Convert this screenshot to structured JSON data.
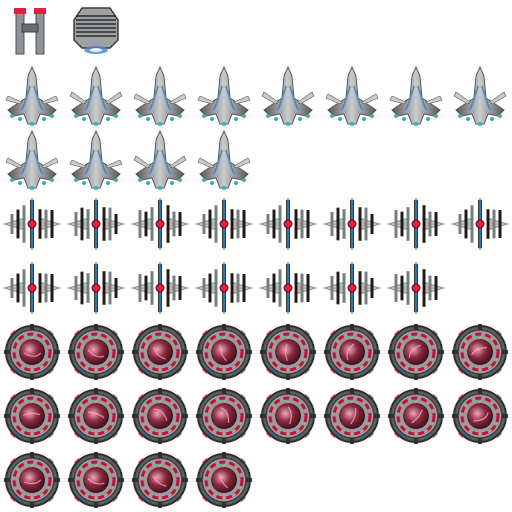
{
  "sheet": {
    "background": "#ffffff",
    "palette": {
      "hull": "#8f9296",
      "hull_dark": "#55585c",
      "hull_light": "#c9cbcd",
      "accent_blue": "#4a86c8",
      "engine_teal": "#2fb6a8",
      "core_red": "#e0203a",
      "pod_pink": "#c23a8a",
      "ring_red": "#c8102e"
    },
    "rows": [
      {
        "sprite": "tower-icon",
        "sprites": [
          "twin-pylon-tower-icon",
          "reactor-dome-icon"
        ]
      },
      {
        "sprite": "cruiser-icon",
        "frames": 8
      },
      {
        "sprite": "cruiser-icon",
        "frames": 4
      },
      {
        "sprite": "fighter-icon",
        "frames": 8
      },
      {
        "sprite": "fighter-icon",
        "frames": 7
      },
      {
        "sprite": "orb-mine-icon",
        "frames": 8
      },
      {
        "sprite": "orb-mine-icon",
        "frames": 8
      },
      {
        "sprite": "orb-mine-icon",
        "frames": 4
      }
    ]
  }
}
